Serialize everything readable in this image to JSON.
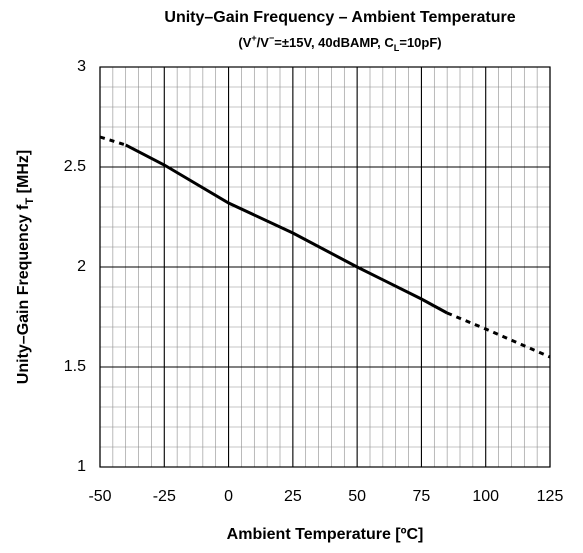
{
  "chart_data": {
    "type": "line",
    "title": "Unity–Gain Frequency – Ambient Temperature",
    "subtitle": [
      "(V",
      "+",
      "/V",
      "−",
      "=±15V, 40dBAMP, C",
      "L",
      "=10pF)"
    ],
    "x_label": "Ambient Temperature [ºC]",
    "y_label": [
      "Unity–Gain Frequency f",
      "T",
      " [MHz]"
    ],
    "x": [
      -50,
      -40,
      -25,
      0,
      25,
      50,
      75,
      85,
      100,
      125
    ],
    "series": [
      {
        "color": "#000000",
        "style": "solid",
        "values": [
          null,
          2.61,
          2.51,
          2.32,
          2.17,
          2.0,
          1.84,
          1.77,
          null,
          null
        ]
      },
      {
        "color": "#000000",
        "style": "dashed",
        "values": [
          2.65,
          2.61,
          null,
          null,
          null,
          null,
          null,
          1.77,
          1.69,
          1.55
        ]
      }
    ],
    "xlim": [
      -50,
      125
    ],
    "xticks": [
      -50,
      -25,
      0,
      25,
      50,
      75,
      100,
      125
    ],
    "ylim": [
      1,
      3
    ],
    "yticks": [
      1,
      1.5,
      2,
      2.5,
      3
    ],
    "grid": true,
    "minor_grid": {
      "x": 5,
      "y": 0.1
    }
  }
}
